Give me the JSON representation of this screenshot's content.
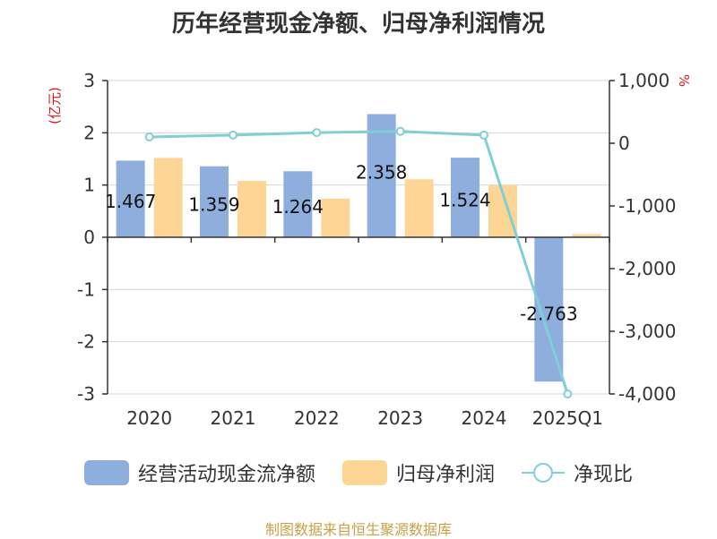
{
  "chart_data": {
    "type": "bar",
    "title": "历年经营现金净额、归母净利润情况",
    "categories": [
      "2020",
      "2021",
      "2022",
      "2023",
      "2024",
      "2025Q1"
    ],
    "left_axis": {
      "unit": "(亿元)",
      "range": [
        -3,
        3
      ],
      "ticks": [
        "3",
        "2",
        "1",
        "0",
        "-1",
        "-2",
        "-3"
      ]
    },
    "right_axis": {
      "unit": "%",
      "range": [
        -4000,
        1000
      ],
      "ticks": [
        "1,000",
        "0",
        "-1,000",
        "-2,000",
        "-3,000",
        "-4,000"
      ]
    },
    "series": [
      {
        "name": "经营活动现金流净额",
        "axis": "left",
        "color": "#8eaedd",
        "values": [
          1.467,
          1.359,
          1.264,
          2.358,
          1.524,
          -2.763
        ],
        "labels": [
          "1.467",
          "1.359",
          "1.264",
          "2.358",
          "1.524",
          "-2.763"
        ]
      },
      {
        "name": "归母净利润",
        "axis": "left",
        "color": "#fdd696",
        "values": [
          1.52,
          1.08,
          0.74,
          1.11,
          1.0,
          0.06
        ]
      },
      {
        "name": "净现比",
        "axis": "right",
        "type": "line",
        "color": "#7fd0d6",
        "values": [
          100,
          130,
          170,
          190,
          130,
          -4000
        ]
      }
    ],
    "grid": true,
    "legend_position": "bottom"
  },
  "source": "制图数据来自恒生聚源数据库"
}
